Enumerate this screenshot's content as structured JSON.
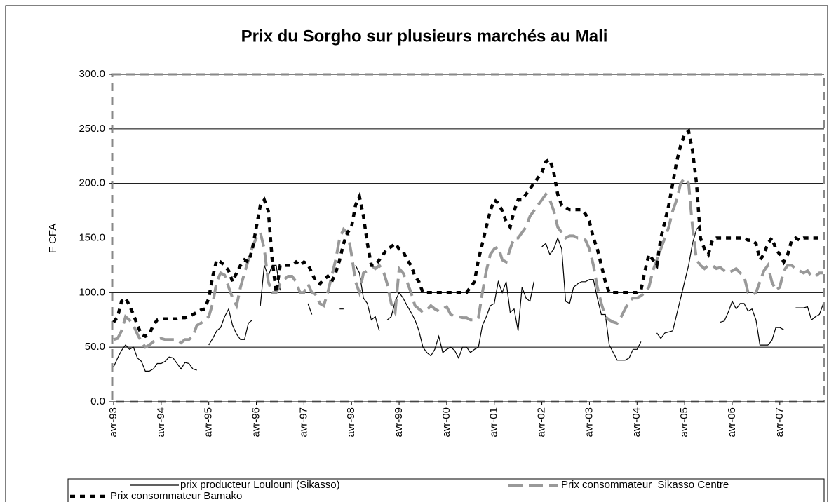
{
  "chart_data": {
    "type": "line",
    "title": "Prix du Sorgho sur plusieurs marchés au Mali",
    "y_label": "F CFA",
    "categories": [
      "avr-93",
      null,
      null,
      null,
      null,
      null,
      null,
      null,
      null,
      null,
      null,
      null,
      "avr-94",
      null,
      null,
      null,
      null,
      null,
      null,
      null,
      null,
      null,
      null,
      null,
      "avr-95",
      null,
      null,
      null,
      null,
      null,
      null,
      null,
      null,
      null,
      null,
      null,
      "avr-96",
      null,
      null,
      null,
      null,
      null,
      null,
      null,
      null,
      null,
      null,
      null,
      "avr-97",
      null,
      null,
      null,
      null,
      null,
      null,
      null,
      null,
      null,
      null,
      null,
      "avr-98",
      null,
      null,
      null,
      null,
      null,
      null,
      null,
      null,
      null,
      null,
      null,
      "avr-99",
      null,
      null,
      null,
      null,
      null,
      null,
      null,
      null,
      null,
      null,
      null,
      "avr-00",
      null,
      null,
      null,
      null,
      null,
      null,
      null,
      null,
      null,
      null,
      null,
      "avr-01",
      null,
      null,
      null,
      null,
      null,
      null,
      null,
      null,
      null,
      null,
      null,
      "avr-02",
      null,
      null,
      null,
      null,
      null,
      null,
      null,
      null,
      null,
      null,
      null,
      "avr-03",
      null,
      null,
      null,
      null,
      null,
      null,
      null,
      null,
      null,
      null,
      null,
      "avr-04",
      null,
      null,
      null,
      null,
      null,
      null,
      null,
      null,
      null,
      null,
      null,
      "avr-05",
      null,
      null,
      null,
      null,
      null,
      null,
      null,
      null,
      null,
      null,
      null,
      "avr-06",
      null,
      null,
      null,
      null,
      null,
      null,
      null,
      null,
      null,
      null,
      null,
      "avr-07",
      null,
      null,
      null,
      null,
      null,
      null,
      null,
      null,
      null,
      null,
      null
    ],
    "series": [
      {
        "name": "prix producteur Loulouni (Sikasso)",
        "color": "#000000",
        "values": [
          32,
          40,
          47,
          52,
          48,
          50,
          40,
          37,
          28,
          28,
          30,
          35,
          35,
          37,
          41,
          40,
          35,
          30,
          36,
          35,
          30,
          29,
          null,
          null,
          52,
          58,
          65,
          68,
          78,
          85,
          70,
          62,
          57,
          57,
          72,
          75,
          null,
          88,
          125,
          115,
          125,
          125,
          102,
          null,
          null,
          null,
          null,
          null,
          null,
          90,
          80,
          null,
          null,
          null,
          null,
          null,
          null,
          85,
          85,
          null,
          null,
          125,
          118,
          95,
          90,
          75,
          78,
          65,
          null,
          75,
          78,
          92,
          100,
          95,
          88,
          82,
          75,
          65,
          50,
          45,
          42,
          48,
          60,
          45,
          48,
          50,
          47,
          40,
          50,
          50,
          45,
          48,
          50,
          70,
          78,
          88,
          90,
          110,
          100,
          110,
          82,
          85,
          65,
          105,
          95,
          92,
          110,
          null,
          142,
          145,
          135,
          140,
          150,
          140,
          92,
          90,
          105,
          108,
          110,
          110,
          112,
          112,
          95,
          80,
          80,
          52,
          45,
          38,
          38,
          38,
          40,
          48,
          48,
          55,
          null,
          null,
          null,
          63,
          58,
          63,
          64,
          65,
          80,
          95,
          110,
          125,
          145,
          158,
          162,
          null,
          null,
          null,
          null,
          73,
          74,
          82,
          92,
          85,
          90,
          90,
          83,
          85,
          75,
          52,
          52,
          52,
          56,
          68,
          68,
          66,
          null,
          null,
          86,
          86,
          86,
          87,
          75,
          78,
          80,
          90
        ]
      },
      {
        "name": "Prix consommateur  Sikasso Centre",
        "color": "#999999",
        "values": [
          57,
          58,
          65,
          78,
          75,
          70,
          62,
          55,
          50,
          52,
          55,
          57,
          58,
          57,
          57,
          57,
          57,
          54,
          57,
          57,
          60,
          70,
          72,
          75,
          78,
          90,
          110,
          118,
          116,
          105,
          95,
          88,
          105,
          118,
          130,
          142,
          150,
          155,
          140,
          110,
          100,
          100,
          108,
          112,
          115,
          115,
          110,
          100,
          100,
          108,
          100,
          98,
          90,
          88,
          100,
          115,
          130,
          150,
          158,
          155,
          135,
          110,
          100,
          118,
          120,
          125,
          122,
          125,
          120,
          108,
          90,
          82,
          122,
          118,
          110,
          100,
          88,
          85,
          82,
          84,
          88,
          85,
          83,
          85,
          87,
          80,
          78,
          78,
          77,
          77,
          75,
          75,
          77,
          100,
          120,
          135,
          140,
          142,
          130,
          128,
          140,
          150,
          150,
          155,
          160,
          170,
          175,
          180,
          185,
          190,
          185,
          175,
          160,
          155,
          150,
          152,
          152,
          150,
          150,
          148,
          140,
          125,
          105,
          90,
          78,
          75,
          73,
          72,
          78,
          85,
          92,
          95,
          95,
          97,
          100,
          105,
          120,
          130,
          140,
          150,
          160,
          175,
          185,
          200,
          205,
          200,
          160,
          130,
          125,
          122,
          125,
          125,
          122,
          123,
          120,
          118,
          120,
          122,
          118,
          115,
          100,
          98,
          100,
          110,
          120,
          125,
          110,
          102,
          105,
          120,
          125,
          125,
          122,
          120,
          118,
          120,
          115,
          115,
          118,
          118
        ]
      },
      {
        "name": "Prix consommateur Bamako",
        "color": "#000000",
        "values": [
          73,
          78,
          92,
          95,
          88,
          80,
          70,
          62,
          60,
          62,
          70,
          75,
          76,
          76,
          76,
          76,
          76,
          77,
          77,
          78,
          80,
          82,
          84,
          85,
          95,
          115,
          130,
          128,
          125,
          120,
          110,
          118,
          125,
          130,
          128,
          140,
          160,
          180,
          185,
          175,
          130,
          100,
          125,
          125,
          125,
          125,
          128,
          125,
          128,
          126,
          118,
          110,
          108,
          112,
          115,
          110,
          118,
          130,
          145,
          155,
          160,
          180,
          188,
          170,
          145,
          125,
          125,
          130,
          135,
          140,
          142,
          145,
          140,
          138,
          130,
          125,
          115,
          110,
          100,
          100,
          100,
          100,
          100,
          100,
          100,
          100,
          100,
          100,
          100,
          100,
          105,
          110,
          130,
          145,
          160,
          175,
          185,
          182,
          175,
          165,
          160,
          175,
          185,
          185,
          190,
          195,
          200,
          205,
          210,
          220,
          222,
          210,
          190,
          180,
          178,
          176,
          176,
          176,
          176,
          172,
          165,
          150,
          140,
          125,
          110,
          100,
          100,
          100,
          100,
          100,
          100,
          100,
          100,
          102,
          120,
          135,
          130,
          125,
          150,
          165,
          180,
          200,
          220,
          235,
          245,
          248,
          230,
          200,
          150,
          140,
          135,
          148,
          150,
          150,
          150,
          150,
          150,
          150,
          150,
          150,
          148,
          148,
          145,
          130,
          135,
          145,
          150,
          140,
          135,
          128,
          135,
          148,
          150,
          148,
          150,
          150,
          150,
          150,
          150,
          150
        ]
      }
    ],
    "ylim": [
      0,
      300
    ],
    "yticks": [
      {
        "value": 0,
        "label": "0.0"
      },
      {
        "value": 50,
        "label": "50.0"
      },
      {
        "value": 100,
        "label": "100.0"
      },
      {
        "value": 150,
        "label": "150.0"
      },
      {
        "value": 200,
        "label": "200.0"
      },
      {
        "value": 250,
        "label": "250.0"
      },
      {
        "value": 300,
        "label": "300.0"
      }
    ],
    "grid": true,
    "legend": "bottom"
  }
}
